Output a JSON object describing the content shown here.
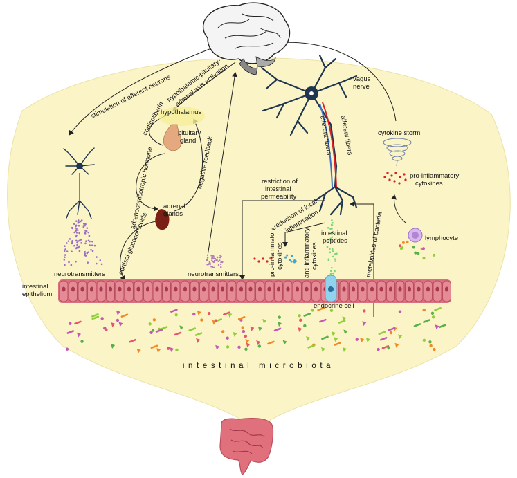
{
  "labels": {
    "stimulation": "stimulation of efferent neurons",
    "hpa1": "hypothalamic-pituitary-",
    "hpa2": "adrenal axis activation",
    "vagus1": "vagus",
    "vagus2": "nerve",
    "corticoliberin": "corticoliberin",
    "hypothalamus": "hypothalamus",
    "pituitary1": "pituitary",
    "pituitary2": "gland",
    "acth": "adrenocorticotropic hormone",
    "negative_feedback": "negative feedback",
    "adrenal1": "adrenal",
    "adrenal2": "glands",
    "cortisol": "cortisol glucocorticoids",
    "efferent_fibers": "efferent fibers",
    "afferent_fibers": "afferent fibers",
    "cytokine_storm": "cytokine storm",
    "proinfl_cytokines_right1": "pro-inflammatory",
    "proinfl_cytokines_right2": "cytokines",
    "restriction1": "restriction of",
    "restriction2": "intestinal",
    "restriction3": "permeability",
    "reduction1": "reduction of local",
    "reduction2": "inflammation",
    "intestinal_peptides1": "intestinal",
    "intestinal_peptides2": "peptides",
    "lymphocyte": "lymphocyte",
    "proinfl_vertical1": "pro-inflammatory",
    "proinfl_vertical2": "cytokines",
    "antiinfl_vertical1": "anti-inflammatory",
    "antiinfl_vertical2": "cytokines",
    "metabolites": "metabolites of bacteria",
    "neurotransmitters_left": "neurotransmitters",
    "neurotransmitters_mid": "neurotransmitters",
    "intestinal_epithelium1": "intestinal",
    "intestinal_epithelium2": "epithelium",
    "endocrine_cell": "endocrine cell",
    "intestinal_microbiota": "intestinal microbiota"
  },
  "colors": {
    "background_shape": "#fbf4c7",
    "epithelium": "#d8707e",
    "epithelium_dark": "#b94d5e",
    "neuron": "#1f3550",
    "adrenal": "#7a1f16",
    "pituitary": "#e4a97e",
    "endocrine_cell": "#8fd3ee",
    "afferent_red": "#d9202a",
    "efferent_blue": "#3d6fc4",
    "intestine": "#e0707c"
  }
}
